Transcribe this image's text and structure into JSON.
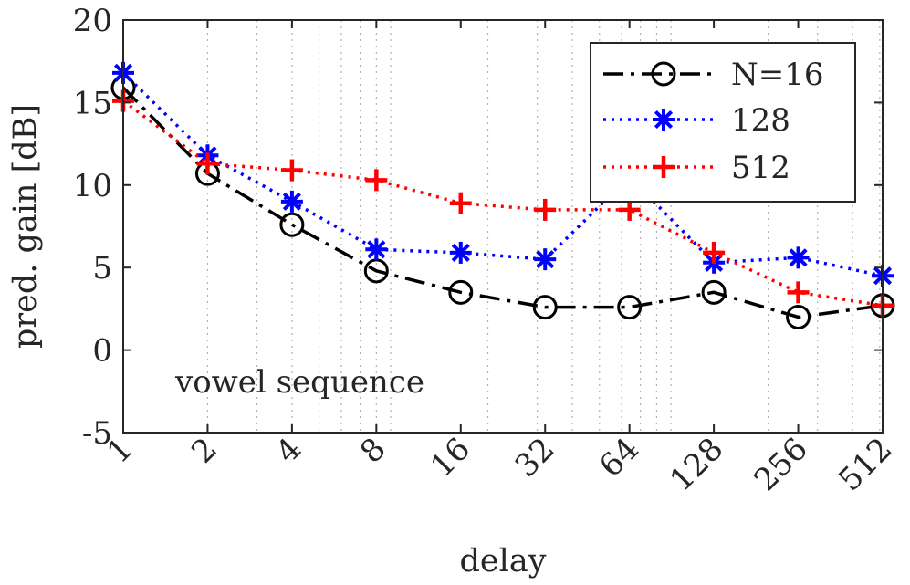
{
  "chart_data": {
    "type": "line",
    "xlabel": "delay",
    "ylabel": "pred. gain [dB]",
    "x_scale": "log2",
    "x": [
      1,
      2,
      4,
      8,
      16,
      32,
      64,
      128,
      256,
      512
    ],
    "x_tick_labels": [
      "1",
      "2",
      "4",
      "8",
      "16",
      "32",
      "64",
      "128",
      "256",
      "512"
    ],
    "xlim": [
      1,
      512
    ],
    "ylim": [
      -5,
      20
    ],
    "y_ticks": [
      -5,
      0,
      5,
      10,
      15,
      20
    ],
    "y_tick_labels": [
      "-5",
      "0",
      "5",
      "10",
      "15",
      "20"
    ],
    "grid": "x-minor-dotted",
    "legend_position": "top-right",
    "annotation": "vowel sequence",
    "series": [
      {
        "name": "N=16",
        "color": "#000000",
        "line_style": "dash-dot",
        "marker": "circle",
        "values": [
          15.9,
          10.7,
          7.6,
          4.8,
          3.5,
          2.6,
          2.6,
          3.5,
          2.0,
          2.7
        ]
      },
      {
        "name": "128",
        "color": "#0000ff",
        "line_style": "dotted",
        "marker": "asterisk",
        "values": [
          16.8,
          11.8,
          9.0,
          6.1,
          5.9,
          5.5,
          10.5,
          5.3,
          5.6,
          4.5
        ]
      },
      {
        "name": "512",
        "color": "#ff0000",
        "line_style": "dotted",
        "marker": "plus",
        "values": [
          15.1,
          11.3,
          10.9,
          10.3,
          8.9,
          8.5,
          8.5,
          5.9,
          3.5,
          2.7
        ]
      }
    ]
  }
}
